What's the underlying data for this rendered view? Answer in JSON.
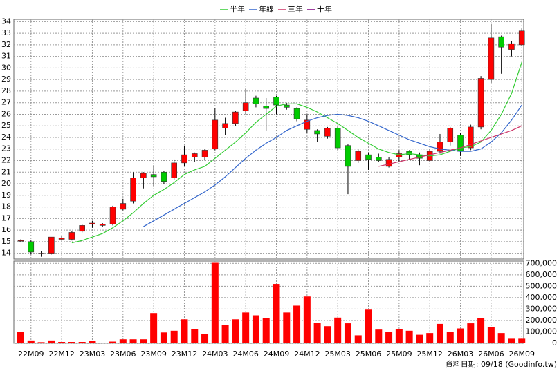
{
  "chart_data": {
    "type": "candlestick",
    "categories": [
      null,
      "22M09",
      null,
      null,
      "22M12",
      null,
      null,
      "23M03",
      null,
      null,
      "23M06",
      null,
      null,
      "23M09",
      null,
      null,
      "23M12",
      null,
      null,
      "24M03",
      null,
      null,
      "24M06",
      null,
      null,
      "24M09",
      null,
      null,
      "24M12",
      null,
      null,
      "25M03",
      null,
      null,
      "25M06",
      null,
      null,
      "25M09",
      null,
      null,
      "25M12",
      null,
      null,
      "26M03",
      null,
      null,
      "26M06",
      null,
      null,
      "26M09"
    ],
    "open": [
      15.05,
      15.0,
      14.0,
      14.0,
      15.2,
      15.2,
      15.9,
      16.5,
      16.4,
      16.5,
      17.8,
      18.5,
      20.5,
      20.8,
      21.0,
      20.5,
      21.8,
      22.3,
      22.3,
      23.0,
      24.8,
      25.2,
      26.3,
      27.4,
      26.7,
      27.5,
      26.8,
      26.5,
      24.7,
      24.6,
      24.1,
      24.8,
      23.3,
      22.0,
      22.5,
      22.3,
      21.5,
      22.3,
      22.8,
      22.5,
      22.0,
      22.8,
      23.6,
      24.2,
      23.1,
      24.9,
      29.0,
      32.7,
      31.6,
      32.0
    ],
    "high": [
      15.2,
      15.1,
      14.2,
      15.4,
      15.5,
      15.9,
      16.5,
      16.8,
      16.6,
      18.1,
      18.7,
      21.0,
      21.0,
      21.6,
      21.1,
      22.1,
      23.3,
      22.7,
      23.0,
      26.5,
      25.7,
      26.3,
      28.2,
      27.6,
      27.4,
      27.6,
      27.0,
      26.6,
      26.0,
      24.7,
      24.9,
      25.0,
      23.4,
      23.0,
      22.7,
      22.6,
      22.3,
      22.9,
      22.9,
      22.7,
      23.0,
      24.3,
      24.9,
      24.4,
      25.1,
      29.3,
      33.8,
      32.8,
      32.3,
      33.4
    ],
    "low": [
      15.0,
      13.9,
      13.7,
      13.9,
      15.1,
      15.1,
      15.8,
      16.2,
      16.3,
      16.4,
      17.7,
      18.3,
      19.6,
      19.8,
      20.0,
      20.3,
      21.5,
      21.9,
      22.0,
      22.9,
      24.2,
      25.0,
      26.0,
      26.6,
      24.6,
      26.0,
      26.4,
      25.4,
      24.4,
      23.6,
      23.9,
      22.9,
      19.1,
      21.8,
      21.2,
      21.9,
      21.4,
      21.9,
      22.1,
      21.6,
      21.9,
      22.6,
      23.3,
      22.4,
      22.9,
      24.7,
      28.7,
      29.5,
      31.0,
      31.9
    ],
    "close": [
      15.1,
      14.1,
      14.0,
      15.4,
      15.3,
      15.8,
      16.4,
      16.6,
      16.5,
      18.0,
      18.3,
      20.5,
      20.9,
      20.6,
      20.2,
      21.8,
      22.5,
      22.6,
      22.9,
      25.5,
      25.2,
      26.2,
      27.0,
      26.9,
      26.5,
      26.8,
      26.6,
      25.6,
      25.5,
      24.3,
      24.8,
      23.1,
      21.5,
      22.8,
      22.1,
      22.0,
      22.1,
      22.6,
      22.5,
      22.2,
      22.8,
      23.6,
      24.8,
      22.8,
      24.9,
      29.1,
      32.6,
      31.8,
      32.1,
      33.2
    ],
    "up_color": "#ff0000",
    "down_color": "#00cc00",
    "ylim": [
      13.5,
      34.2
    ],
    "yticks": [
      14,
      15,
      16,
      17,
      18,
      19,
      20,
      21,
      22,
      23,
      24,
      25,
      26,
      27,
      28,
      29,
      30,
      31,
      32,
      33,
      34
    ],
    "grid": true,
    "series": [
      {
        "name": "半年",
        "color": "#33cc33",
        "values": [
          null,
          null,
          null,
          null,
          null,
          14.9,
          15.1,
          15.4,
          15.7,
          16.2,
          16.8,
          17.5,
          18.3,
          19.0,
          19.5,
          20.1,
          20.8,
          21.2,
          21.5,
          22.2,
          22.9,
          23.6,
          24.4,
          25.3,
          26.0,
          26.7,
          26.9,
          26.9,
          26.6,
          26.2,
          25.7,
          25.2,
          24.6,
          24.0,
          23.5,
          23.0,
          22.7,
          22.5,
          22.6,
          22.5,
          22.4,
          22.5,
          22.8,
          23.1,
          23.2,
          23.6,
          24.6,
          26.0,
          27.8,
          30.5
        ]
      },
      {
        "name": "年線",
        "color": "#3366cc",
        "values": [
          null,
          null,
          null,
          null,
          null,
          null,
          null,
          null,
          null,
          null,
          null,
          null,
          16.3,
          16.8,
          17.3,
          17.8,
          18.3,
          18.8,
          19.3,
          19.9,
          20.6,
          21.4,
          22.2,
          22.9,
          23.5,
          24.0,
          24.6,
          25.0,
          25.4,
          25.7,
          25.9,
          26.0,
          25.9,
          25.7,
          25.4,
          25.0,
          24.6,
          24.2,
          23.8,
          23.5,
          23.2,
          23.0,
          22.9,
          22.8,
          22.8,
          23.0,
          23.6,
          24.4,
          25.5,
          26.8
        ]
      },
      {
        "name": "三年",
        "color": "#cc3366",
        "values": [
          null,
          null,
          null,
          null,
          null,
          null,
          null,
          null,
          null,
          null,
          null,
          null,
          null,
          null,
          null,
          null,
          null,
          null,
          null,
          null,
          null,
          null,
          null,
          null,
          null,
          null,
          null,
          null,
          null,
          null,
          null,
          null,
          null,
          null,
          null,
          21.5,
          21.7,
          21.9,
          22.1,
          22.3,
          22.5,
          22.7,
          22.9,
          23.1,
          23.4,
          23.7,
          24.0,
          24.3,
          24.6,
          25.0
        ]
      },
      {
        "name": "十年",
        "color": "#800080",
        "values": [
          null,
          null,
          null,
          null,
          null,
          null,
          null,
          null,
          null,
          null,
          null,
          null,
          null,
          null,
          null,
          null,
          null,
          null,
          null,
          null,
          null,
          null,
          null,
          null,
          null,
          null,
          null,
          null,
          null,
          null,
          null,
          null,
          null,
          null,
          null,
          null,
          null,
          null,
          null,
          null,
          null,
          null,
          null,
          null,
          null,
          null,
          null,
          null,
          null,
          null
        ]
      }
    ],
    "volume": {
      "color": "#ff0000",
      "values": [
        100000,
        25000,
        10000,
        25000,
        12000,
        12000,
        12000,
        20000,
        5000,
        15000,
        35000,
        35000,
        35000,
        265000,
        95000,
        110000,
        210000,
        125000,
        80000,
        705000,
        160000,
        210000,
        270000,
        245000,
        220000,
        520000,
        270000,
        330000,
        410000,
        180000,
        150000,
        225000,
        175000,
        70000,
        295000,
        120000,
        100000,
        125000,
        110000,
        75000,
        90000,
        170000,
        100000,
        130000,
        175000,
        220000,
        140000,
        90000,
        40000,
        40000
      ],
      "ylim": [
        0,
        720000
      ],
      "yticks": [
        0,
        {
          "value": 100000,
          "label": "100,000"
        },
        {
          "value": 200000,
          "label": "200,000"
        },
        {
          "value": 300000,
          "label": "300,000"
        },
        {
          "value": 400000,
          "label": "400,000"
        },
        {
          "value": 500000,
          "label": "500,000"
        },
        {
          "value": 600000,
          "label": "600,000"
        },
        {
          "value": 700000,
          "label": "700,000"
        }
      ]
    },
    "footer": "資料日期: 09/18  (Goodinfo.tw)"
  }
}
